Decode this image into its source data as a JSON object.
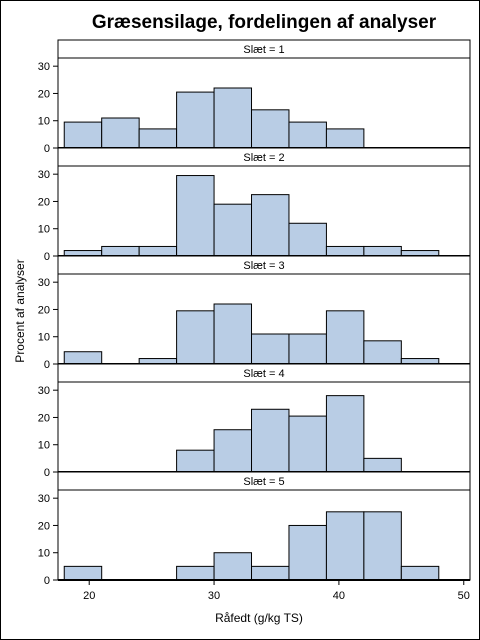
{
  "chart_data": {
    "type": "bar",
    "title": "Græsensilage, fordelingen af analyser",
    "xlabel": "Råfedt (g/kg TS)",
    "ylabel": "Procent af analyser",
    "xlim": [
      17.5,
      50.5
    ],
    "ylim": [
      0,
      33
    ],
    "xticks": [
      20,
      30,
      40,
      50
    ],
    "yticks": [
      0,
      10,
      20,
      30
    ],
    "bin_edges": [
      18,
      21,
      24,
      27,
      30,
      33,
      36,
      39,
      42,
      45,
      48
    ],
    "panels": [
      {
        "label": "Slæt = 1",
        "values": [
          9.5,
          11,
          7,
          20.5,
          22,
          14,
          9.5,
          7,
          0,
          0
        ]
      },
      {
        "label": "Slæt = 2",
        "values": [
          2,
          3.5,
          3.5,
          29.5,
          19,
          22.5,
          12,
          3.5,
          3.5,
          2
        ]
      },
      {
        "label": "Slæt = 3",
        "values": [
          4.5,
          0,
          2,
          19.5,
          22,
          11,
          11,
          19.5,
          8.5,
          2
        ]
      },
      {
        "label": "Slæt = 4",
        "values": [
          0,
          0,
          0,
          8,
          15.5,
          23,
          20.5,
          28,
          5,
          0
        ]
      },
      {
        "label": "Slæt = 5",
        "values": [
          5,
          0,
          0,
          5,
          10,
          5,
          20,
          25,
          25,
          5
        ]
      }
    ]
  }
}
